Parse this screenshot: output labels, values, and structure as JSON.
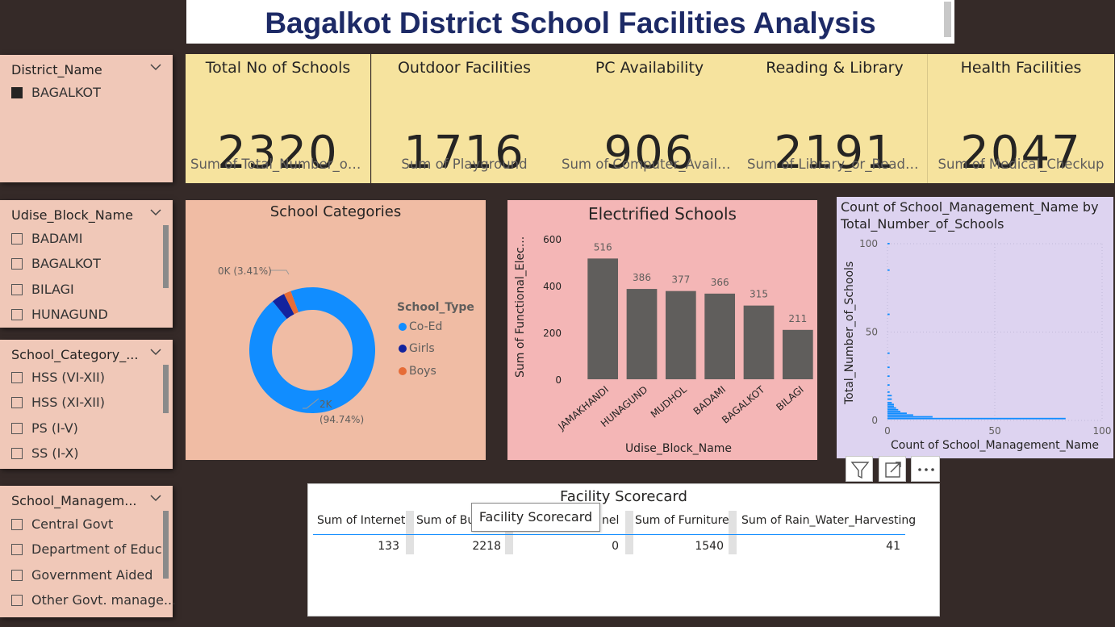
{
  "title": "Bagalkot District School Facilities Analysis",
  "slicers": {
    "district": {
      "title": "District_Name",
      "items": [
        "BAGALKOT"
      ]
    },
    "block": {
      "title": "Udise_Block_Name",
      "items": [
        "BADAMI",
        "BAGALKOT",
        "BILAGI",
        "HUNAGUND"
      ]
    },
    "category": {
      "title": "School_Category_...",
      "items": [
        "HSS (VI-XII)",
        "HSS (XI-XII)",
        "PS (I-V)",
        "SS (I-X)"
      ]
    },
    "management": {
      "title": "School_Managem...",
      "items": [
        "Central Govt",
        "Department of Educ.",
        "Government Aided",
        "Other Govt. manage..."
      ]
    }
  },
  "cards": [
    {
      "title": "Total No of Schools",
      "value": "2320",
      "sub": "Sum of Total_Number_of_..."
    },
    {
      "title": "Outdoor Facilities",
      "value": "1716",
      "sub": "Sum of Playground"
    },
    {
      "title": "PC Availability",
      "value": "906",
      "sub": "Sum of Computer_Availa..."
    },
    {
      "title": "Reading & Library",
      "value": "2191",
      "sub": "Sum of Library_or_Readin..."
    },
    {
      "title": "Health Facilities",
      "value": "2047",
      "sub": "Sum of Medical_Checkup"
    }
  ],
  "donut": {
    "title": "School Categories",
    "legend_title": "School_Type",
    "label_small": "0K (3.41%)",
    "label_big_1": "2K",
    "label_big_2": "(94.74%)",
    "colors": {
      "Co-Ed": "#118dff",
      "Girls": "#12239e",
      "Boys": "#e66c37"
    }
  },
  "bar": {
    "title": "Electrified Schools",
    "ylabel": "Sum of Functional_Elec...",
    "xlabel": "Udise_Block_Name"
  },
  "scatter": {
    "title_1": "Count of School_Management_Name by",
    "title_2": "Total_Number_of_Schools",
    "ylabel": "Total_Number_of_Schools",
    "xlabel": "Count of School_Management_Name"
  },
  "table": {
    "title": "Facility Scorecard",
    "tooltip": "Facility Scorecard",
    "headers": [
      "Sum of Internet",
      "Sum of Bu",
      "nel",
      "Sum of Furniture",
      "Sum of Rain_Water_Harvesting"
    ],
    "row": [
      "133",
      "2218",
      "0",
      "1540",
      "41"
    ]
  },
  "visual_header_icons": [
    "filter-icon",
    "focus-mode-icon",
    "more-options-icon"
  ],
  "chart_data": [
    {
      "type": "pie",
      "title": "School Categories",
      "legend_title": "School_Type",
      "categories": [
        "Co-Ed",
        "Girls",
        "Boys"
      ],
      "values": [
        94.74,
        3.41,
        1.85
      ],
      "unit": "%",
      "colors": [
        "#118dff",
        "#12239e",
        "#e66c37"
      ],
      "legend": "right"
    },
    {
      "type": "bar",
      "title": "Electrified Schools",
      "xlabel": "Udise_Block_Name",
      "ylabel": "Sum of Functional_Elec...",
      "categories": [
        "JAMAKHANDI",
        "HUNAGUND",
        "MUDHOL",
        "BADAMI",
        "BAGALKOT",
        "BILAGI"
      ],
      "values": [
        516,
        386,
        377,
        366,
        315,
        211
      ],
      "ylim": [
        0,
        600
      ],
      "yticks": [
        0,
        200,
        400,
        600
      ],
      "color": "#605e5c"
    },
    {
      "type": "bar",
      "orientation": "horizontal",
      "title": "Count of School_Management_Name by Total_Number_of_Schools",
      "xlabel": "Count of School_Management_Name",
      "ylabel": "Total_Number_of_Schools",
      "xlim": [
        0,
        100
      ],
      "ylim": [
        0,
        100
      ],
      "xticks": [
        0,
        50,
        100
      ],
      "yticks": [
        0,
        50,
        100
      ],
      "y": [
        1,
        2,
        3,
        4,
        5,
        6,
        7,
        8,
        9,
        10,
        12,
        14,
        16,
        20,
        25,
        30,
        38,
        60,
        85,
        100
      ],
      "values": [
        83,
        21,
        12,
        9,
        6,
        5,
        4,
        3,
        3,
        2,
        2,
        2,
        1,
        1,
        1,
        1,
        1,
        1,
        1,
        1
      ],
      "color": "#118dff"
    }
  ]
}
